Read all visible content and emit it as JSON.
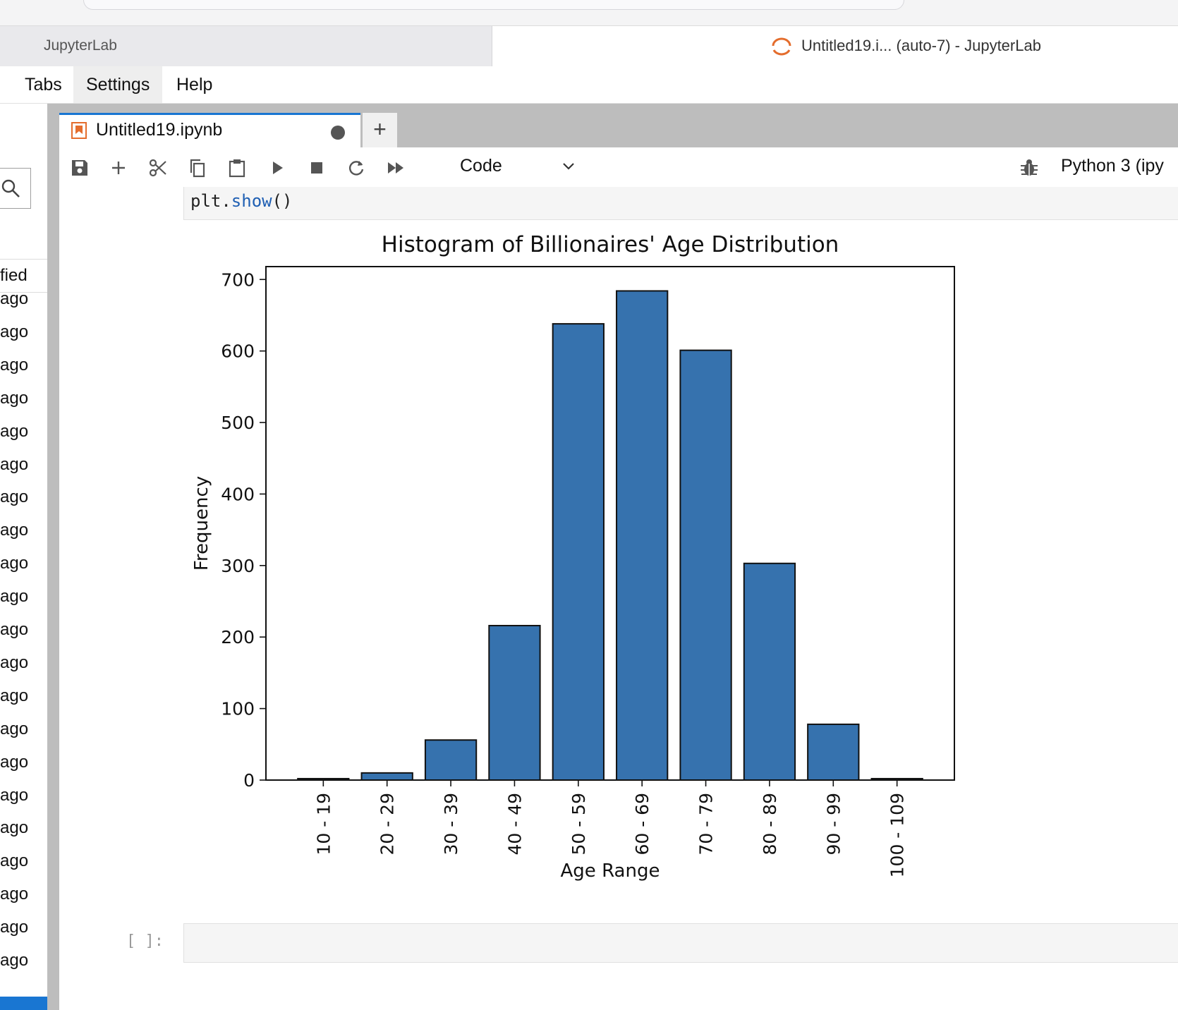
{
  "browser": {
    "inactive_tab": "JupyterLab",
    "active_tab_title": "Untitled19.i... (auto-7) - JupyterLab"
  },
  "menu": {
    "items": [
      "Tabs",
      "Settings",
      "Help"
    ]
  },
  "sidebar": {
    "column_header": "fied",
    "rows": [
      "ago",
      "ago",
      "ago",
      "ago",
      "ago",
      "ago",
      "ago",
      "ago",
      "ago",
      "ago",
      "ago",
      "ago",
      "ago",
      "ago",
      "ago",
      "ago",
      "ago",
      "ago",
      "ago",
      "ago",
      "ago"
    ]
  },
  "notebook": {
    "tab_title": "Untitled19.ipynb",
    "cell_type": "Code",
    "kernel": "Python 3 (ipy",
    "code_obj": "plt.",
    "code_fn": "show",
    "code_rest": "()",
    "empty_prompt": "[ ]:"
  },
  "colors": {
    "bar": "#3672ae",
    "accent": "#1976d2",
    "tab_icon": "#e46d2d"
  },
  "chart_data": {
    "type": "bar",
    "title": "Histogram of Billionaires' Age Distribution",
    "xlabel": "Age Range",
    "ylabel": "Frequency",
    "categories": [
      "10 - 19",
      "20 - 29",
      "30 - 39",
      "40 - 49",
      "50 - 59",
      "60 - 69",
      "70 - 79",
      "80 - 89",
      "90 - 99",
      "100 - 109"
    ],
    "values": [
      2,
      10,
      56,
      216,
      638,
      684,
      601,
      303,
      78,
      2
    ],
    "yticks": [
      0,
      100,
      200,
      300,
      400,
      500,
      600,
      700
    ],
    "ylim": [
      0,
      718
    ],
    "grid": false
  }
}
